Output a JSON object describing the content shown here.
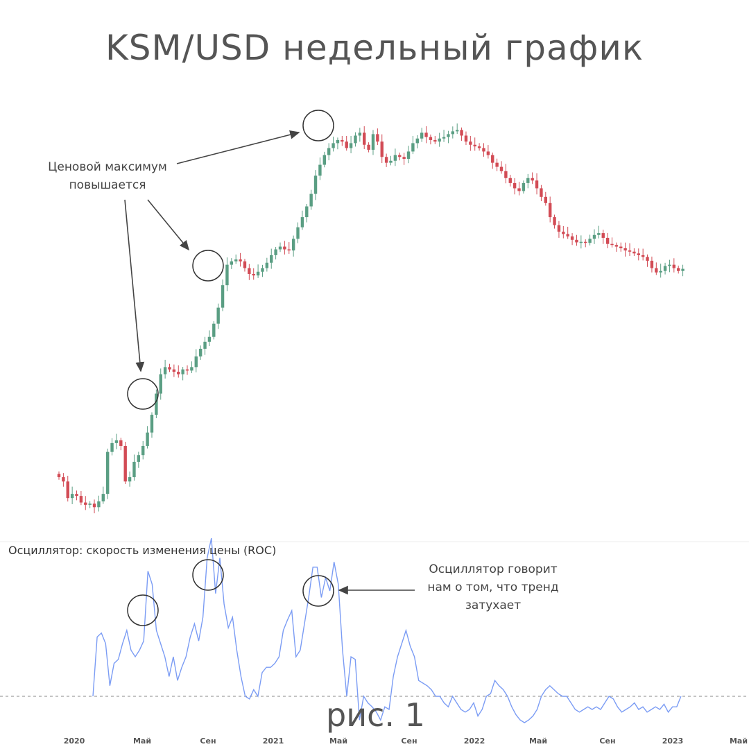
{
  "title": "KSM/USD недельный график",
  "annotations": {
    "price_max_line1": "Ценовой максимум",
    "price_max_line2": "повышается",
    "osc_line1": "Осциллятор говорит",
    "osc_line2": "нам о том, что тренд",
    "osc_line3": "затухает"
  },
  "oscillator_label": "Осциллятор: скорость изменения цены (ROC)",
  "figure_label": "рис. 1",
  "colors": {
    "up": "#5a9e83",
    "down": "#d24b55",
    "roc_line": "#7b9cf4",
    "baseline": "#888888"
  },
  "chart_data": [
    {
      "type": "candlestick",
      "title": "KSM/USD недельный график",
      "x_tick_labels": [
        "2020",
        "Май",
        "Сен",
        "2021",
        "Май",
        "Сен",
        "2022",
        "Май",
        "Сен",
        "2023",
        "Май"
      ],
      "y_scale": "log",
      "y_axis_hidden": true,
      "description_series": "weekly closes (relative units, visual estimate)",
      "closes": [
        1.0,
        0.95,
        0.78,
        0.82,
        0.8,
        0.74,
        0.72,
        0.73,
        0.7,
        0.75,
        0.82,
        1.35,
        1.5,
        1.55,
        1.45,
        0.95,
        1.0,
        1.2,
        1.3,
        1.45,
        1.7,
        2.1,
        2.7,
        3.4,
        3.7,
        3.6,
        3.5,
        3.4,
        3.6,
        3.55,
        3.7,
        4.2,
        4.6,
        5.0,
        5.3,
        6.2,
        7.5,
        9.8,
        12.5,
        13.0,
        13.3,
        13.0,
        12.0,
        11.2,
        11.0,
        11.5,
        12.0,
        12.8,
        14.0,
        15.0,
        15.5,
        15.0,
        14.8,
        17.0,
        19.5,
        22.0,
        25.0,
        29.0,
        36.0,
        41.0,
        46.0,
        50.0,
        53.0,
        55.0,
        54.0,
        50.0,
        53.0,
        58.0,
        60.0,
        52.0,
        49.0,
        59.0,
        54.0,
        45.0,
        42.0,
        43.0,
        46.0,
        45.0,
        44.0,
        48.0,
        53.0,
        56.0,
        60.0,
        57.0,
        55.0,
        54.0,
        56.0,
        57.0,
        59.0,
        61.0,
        62.0,
        58.0,
        54.0,
        52.0,
        51.0,
        50.0,
        48.0,
        46.0,
        42.0,
        40.0,
        38.0,
        35.0,
        33.0,
        31.0,
        30.0,
        33.0,
        35.0,
        34.0,
        31.0,
        28.0,
        26.0,
        22.0,
        20.0,
        18.5,
        18.0,
        17.5,
        16.8,
        16.3,
        16.4,
        16.2,
        17.0,
        17.8,
        18.2,
        17.2,
        16.0,
        15.8,
        15.5,
        15.2,
        14.8,
        14.6,
        14.3,
        14.0,
        13.7,
        13.1,
        12.0,
        11.4,
        11.6,
        12.3,
        12.5,
        12.0,
        11.6,
        11.9
      ]
    },
    {
      "type": "line",
      "title": "Осциллятор: скорость изменения цены (ROC)",
      "baseline": "dashed zero line",
      "values": [
        0.0,
        0.45,
        0.48,
        0.4,
        0.08,
        0.25,
        0.28,
        0.4,
        0.5,
        0.35,
        0.3,
        0.35,
        0.42,
        0.95,
        0.85,
        0.5,
        0.4,
        0.3,
        0.15,
        0.3,
        0.12,
        0.22,
        0.3,
        0.45,
        0.55,
        0.42,
        0.6,
        1.05,
        1.2,
        0.78,
        1.05,
        0.7,
        0.52,
        0.6,
        0.35,
        0.15,
        0.0,
        -0.02,
        0.05,
        0.0,
        0.18,
        0.22,
        0.22,
        0.25,
        0.3,
        0.5,
        0.58,
        0.65,
        0.3,
        0.35,
        0.55,
        0.75,
        0.98,
        0.98,
        0.75,
        0.9,
        0.8,
        1.02,
        0.85,
        0.35,
        0.0,
        0.3,
        0.28,
        -0.18,
        0.0,
        -0.05,
        -0.08,
        -0.12,
        -0.18,
        -0.08,
        -0.1,
        0.15,
        0.3,
        0.4,
        0.5,
        0.38,
        0.3,
        0.12,
        0.1,
        0.08,
        0.05,
        0.0,
        0.0,
        -0.05,
        -0.08,
        0.0,
        -0.05,
        -0.1,
        -0.12,
        -0.1,
        -0.05,
        -0.15,
        -0.1,
        0.0,
        0.02,
        0.12,
        0.08,
        0.05,
        0.0,
        -0.08,
        -0.14,
        -0.18,
        -0.2,
        -0.18,
        -0.15,
        -0.1,
        0.0,
        0.05,
        0.08,
        0.05,
        0.02,
        0.0,
        0.0,
        -0.05,
        -0.1,
        -0.12,
        -0.1,
        -0.08,
        -0.1,
        -0.08,
        -0.1,
        -0.05,
        0.0,
        -0.02,
        -0.08,
        -0.12,
        -0.1,
        -0.08,
        -0.05,
        -0.1,
        -0.08,
        -0.12,
        -0.1,
        -0.08,
        -0.1,
        -0.06,
        -0.12,
        -0.08,
        -0.08,
        0.0
      ]
    }
  ]
}
